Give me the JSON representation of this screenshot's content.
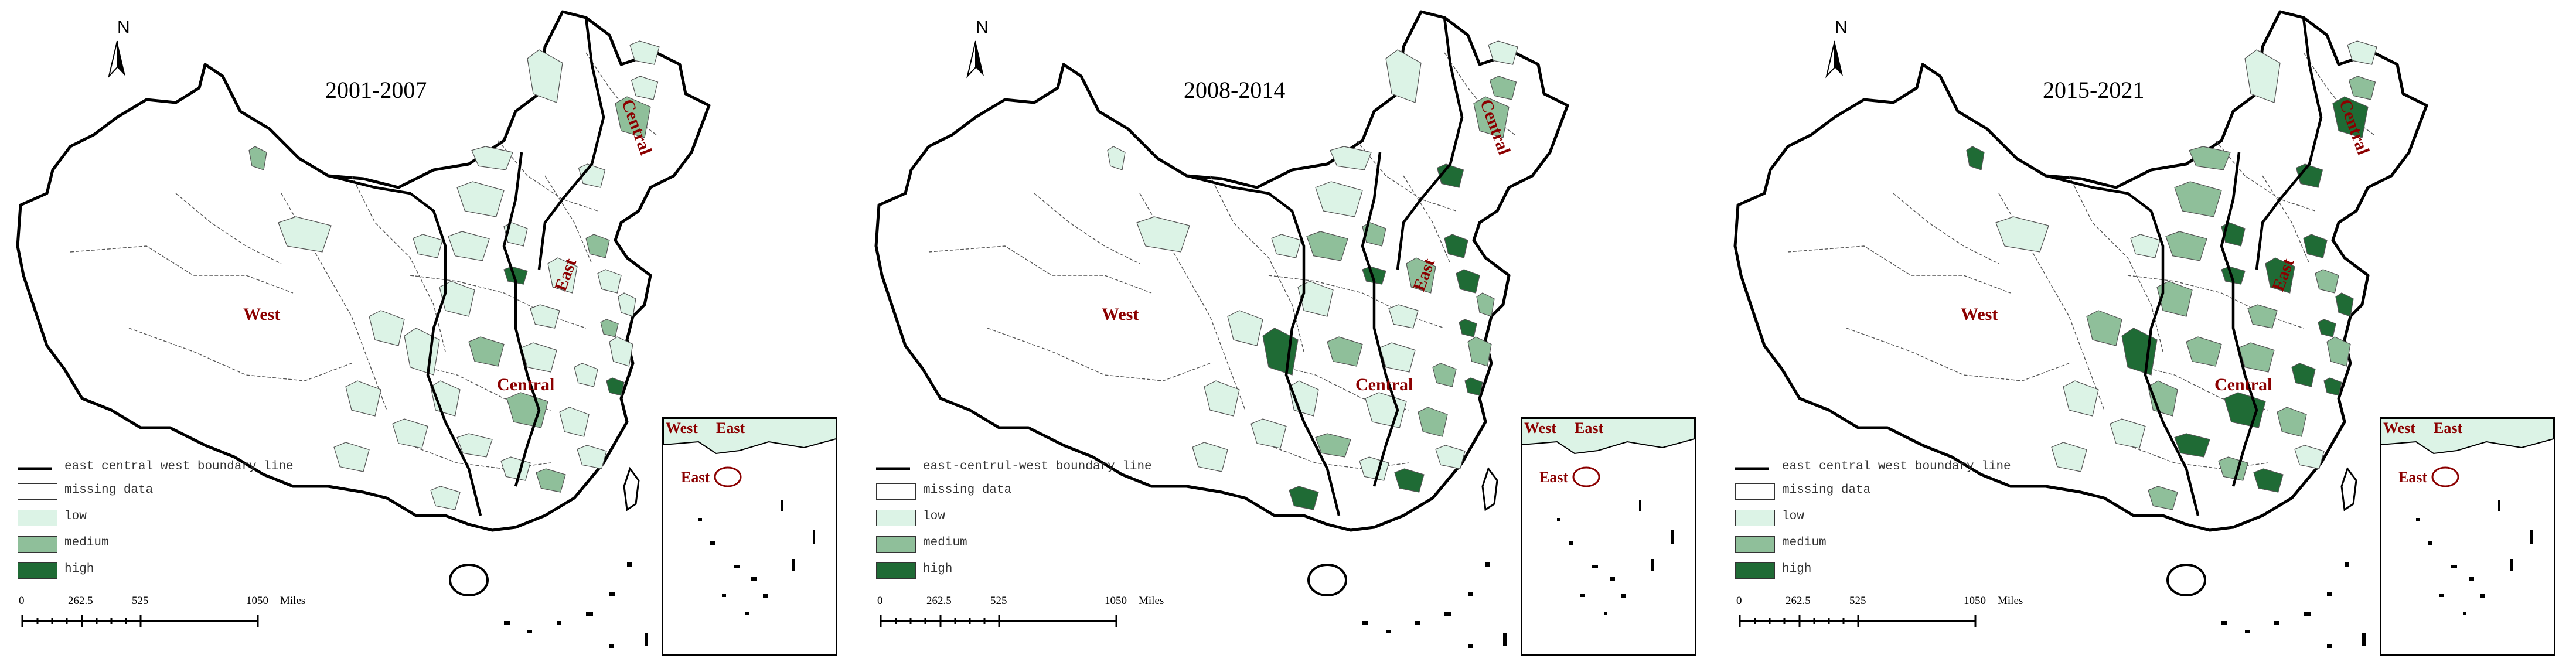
{
  "panels": [
    {
      "period": "2001-2007",
      "legend_title": "east central west boundary line"
    },
    {
      "period": "2008-2014",
      "legend_title": "east-centrul-west boundary line"
    },
    {
      "period": "2015-2021",
      "legend_title": "east central west boundary line"
    }
  ],
  "north_label": "N",
  "regions": {
    "west": "West",
    "central": "Central",
    "east": "East"
  },
  "legend": {
    "missing": "missing data",
    "low": "low",
    "medium": "medium",
    "high": "high"
  },
  "scale_bar": {
    "ticks": [
      "0",
      "262.5",
      "525",
      "1050"
    ],
    "unit": "Miles"
  },
  "colors": {
    "missing": "#ffffff",
    "low": "#dcf3e6",
    "medium": "#8fbf9a",
    "high": "#1f6b35",
    "boundary": "#000000",
    "region_label": "#8b0000"
  }
}
